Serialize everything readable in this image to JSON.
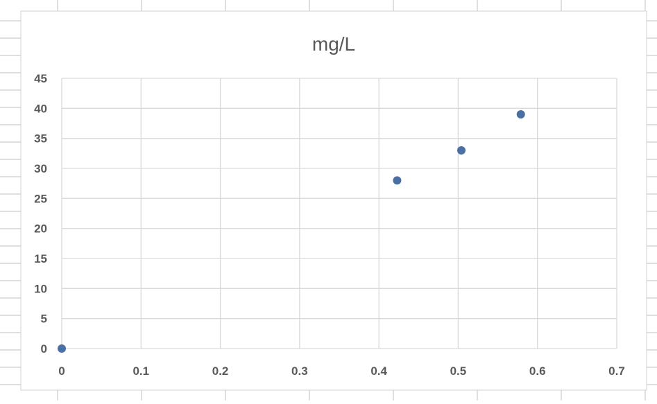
{
  "chart_data": {
    "type": "scatter",
    "title": "mg/L",
    "xlabel": "",
    "ylabel": "",
    "xlim": [
      0,
      0.7
    ],
    "ylim": [
      0,
      45
    ],
    "xticks": [
      0,
      0.1,
      0.2,
      0.3,
      0.4,
      0.5,
      0.6,
      0.7
    ],
    "yticks": [
      0,
      5,
      10,
      15,
      20,
      25,
      30,
      35,
      40,
      45
    ],
    "xtick_labels": [
      "0",
      "0.1",
      "0.2",
      "0.3",
      "0.4",
      "0.5",
      "0.6",
      "0.7"
    ],
    "ytick_labels": [
      "0",
      "5",
      "10",
      "15",
      "20",
      "25",
      "30",
      "35",
      "40",
      "45"
    ],
    "grid": true,
    "legend": "none",
    "series": [
      {
        "x": [
          0,
          0.423,
          0.504,
          0.579
        ],
        "y": [
          0,
          28,
          33,
          39
        ]
      }
    ],
    "colors": {
      "marker": "#4A6FA5",
      "grid": "#D9D9D9",
      "text": "#595959",
      "sheet_lines": "#BFBFBF",
      "chart_border": "#D0D0D0"
    }
  }
}
